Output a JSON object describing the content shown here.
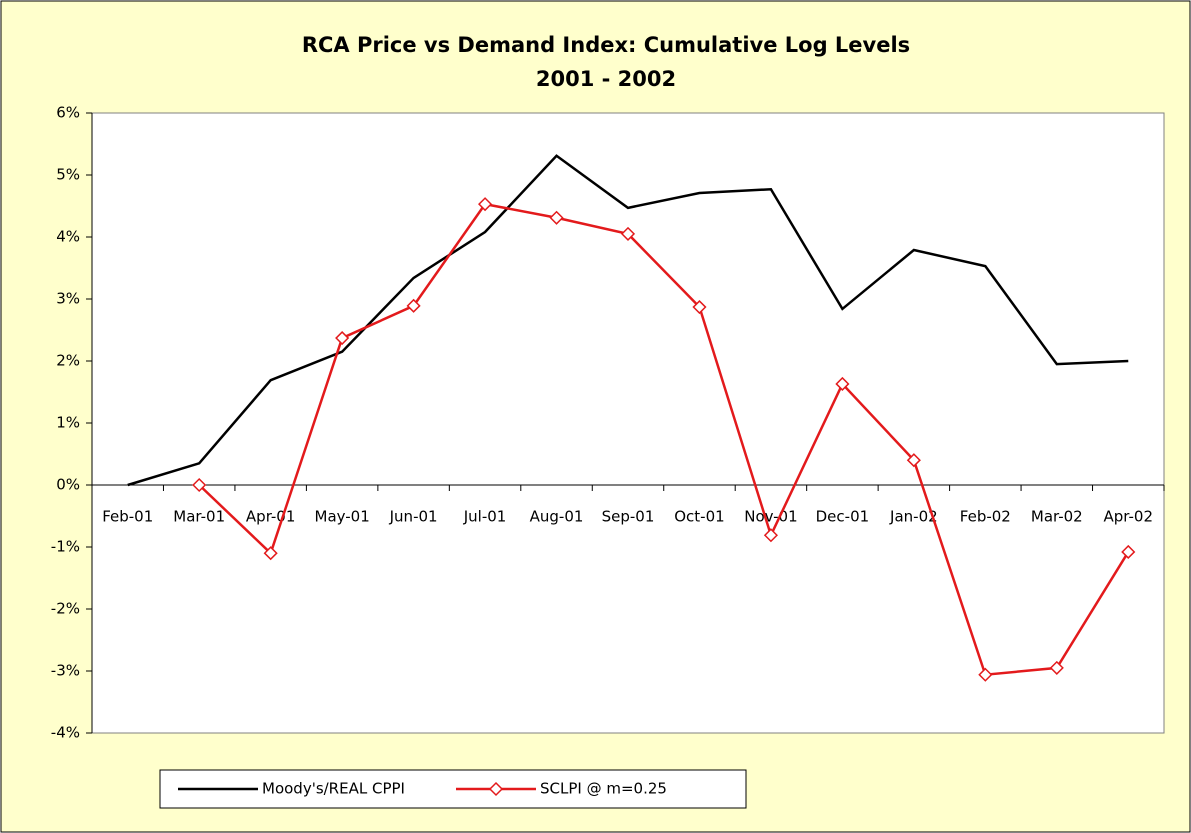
{
  "chart_data": {
    "type": "line",
    "title": "RCA Price vs Demand Index: Cumulative Log Levels",
    "subtitle": "2001 - 2002",
    "categories": [
      "Feb-01",
      "Mar-01",
      "Apr-01",
      "May-01",
      "Jun-01",
      "Jul-01",
      "Aug-01",
      "Sep-01",
      "Oct-01",
      "Nov-01",
      "Dec-01",
      "Jan-02",
      "Feb-02",
      "Mar-02",
      "Apr-02"
    ],
    "series": [
      {
        "name": "Moody's/REAL CPPI",
        "color": "#000000",
        "marker": "none",
        "values": [
          0,
          0.35,
          1.69,
          2.15,
          3.34,
          4.08,
          5.31,
          4.47,
          4.71,
          4.77,
          2.84,
          3.79,
          3.53,
          1.95,
          2.0
        ]
      },
      {
        "name": "SCLPI @ m=0.25",
        "color": "#e31a1c",
        "marker": "diamond",
        "values": [
          null,
          0,
          -1.1,
          2.37,
          2.89,
          4.53,
          4.31,
          4.05,
          2.87,
          -0.81,
          1.63,
          0.4,
          -3.06,
          -2.95,
          -1.08
        ]
      }
    ],
    "ylim": [
      -4,
      6
    ],
    "yticks": [
      {
        "value": -4,
        "label": "-4%"
      },
      {
        "value": -3,
        "label": "-3%"
      },
      {
        "value": -2,
        "label": "-2%"
      },
      {
        "value": -1,
        "label": "-1%"
      },
      {
        "value": 0,
        "label": "0%"
      },
      {
        "value": 1,
        "label": "1%"
      },
      {
        "value": 2,
        "label": "2%"
      },
      {
        "value": 3,
        "label": "3%"
      },
      {
        "value": 4,
        "label": "4%"
      },
      {
        "value": 5,
        "label": "5%"
      },
      {
        "value": 6,
        "label": "6%"
      }
    ],
    "grid": false,
    "legend": "bottom"
  }
}
